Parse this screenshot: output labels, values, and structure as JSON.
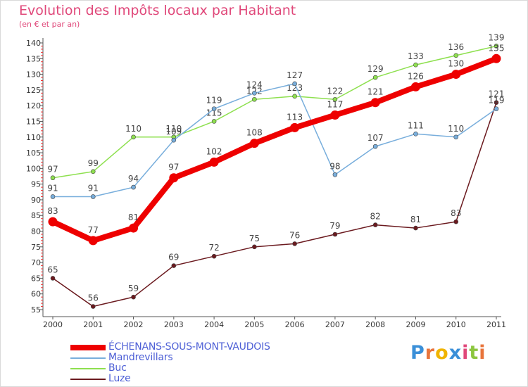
{
  "header": {
    "title": "Evolution des Impôts locaux par Habitant",
    "subtitle": "(en € et par an)"
  },
  "logo": {
    "letters": [
      "P",
      "r",
      "o",
      "x",
      "i",
      "t",
      "i"
    ],
    "colors": [
      "#3a8fd8",
      "#e8743b",
      "#f0b400",
      "#3a8fd8",
      "#e0487a",
      "#8cc63f",
      "#e8743b"
    ]
  },
  "chart_data": {
    "type": "line",
    "x": [
      "2000",
      "2001",
      "2002",
      "2003",
      "2004",
      "2005",
      "2006",
      "2007",
      "2008",
      "2009",
      "2010",
      "2011"
    ],
    "ylim": [
      55,
      140
    ],
    "yticks": [
      "55",
      "60",
      "65",
      "70",
      "75",
      "80",
      "85",
      "90",
      "95",
      "100",
      "105",
      "110",
      "115",
      "120",
      "125",
      "130",
      "135",
      "140"
    ],
    "grid": false,
    "legend_position": "bottom-left",
    "series": [
      {
        "name": "Luze",
        "color": "#6b1a1f",
        "values": [
          65,
          56,
          59,
          69,
          72,
          75,
          76,
          79,
          82,
          81,
          83,
          121
        ],
        "labels": [
          "65",
          "56",
          "59",
          "69",
          "72",
          "75",
          "76",
          "79",
          "82",
          "81",
          "83",
          "121"
        ]
      },
      {
        "name": "Buc",
        "color": "#8ee04f",
        "values": [
          97,
          99,
          110,
          110,
          115,
          122,
          123,
          122,
          129,
          133,
          136,
          139
        ],
        "labels": [
          "97",
          "99",
          "110",
          "110",
          "115",
          "122",
          "123",
          "122",
          "129",
          "133",
          "136",
          "139"
        ]
      },
      {
        "name": "Mandrevillars",
        "color": "#78aedc",
        "values": [
          91,
          91,
          94,
          109,
          119,
          124,
          127,
          98,
          107,
          111,
          110,
          119
        ],
        "labels": [
          "91",
          "91",
          "94",
          "109",
          "119",
          "124",
          "127",
          "98",
          "107",
          "111",
          "110",
          "119"
        ]
      },
      {
        "name": "ÉCHENANS-SOUS-MONT-VAUDOIS",
        "color": "#ee0000",
        "values": [
          83,
          77,
          81,
          97,
          102,
          108,
          113,
          117,
          121,
          126,
          130,
          135
        ],
        "labels": [
          "83",
          "77",
          "81",
          "97",
          "102",
          "108",
          "113",
          "117",
          "121",
          "126",
          "130",
          "135"
        ]
      }
    ],
    "legend": [
      {
        "name": "ÉCHENANS-SOUS-MONT-VAUDOIS",
        "color": "#ee0000"
      },
      {
        "name": "Mandrevillars",
        "color": "#78aedc"
      },
      {
        "name": "Buc",
        "color": "#8ee04f"
      },
      {
        "name": "Luze",
        "color": "#6b1a1f"
      }
    ]
  }
}
